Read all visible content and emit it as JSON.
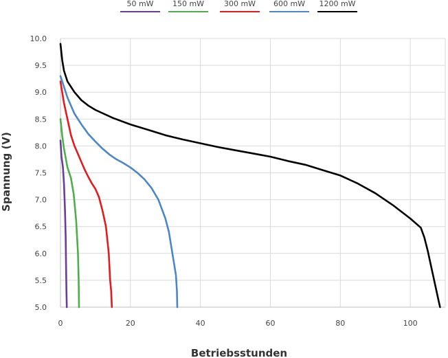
{
  "chart_data": {
    "type": "line",
    "xlabel": "Betriebsstunden",
    "ylabel": "Spannung (V)",
    "xlim": [
      0,
      110
    ],
    "ylim": [
      5.0,
      10.0
    ],
    "x_ticks": [
      "0",
      "20",
      "40",
      "60",
      "80",
      "100"
    ],
    "y_ticks": [
      "5.0",
      "5.5",
      "6.0",
      "6.5",
      "7.0",
      "7.5",
      "8.0",
      "8.5",
      "9.0",
      "9.5",
      "10.0"
    ],
    "grid": true,
    "legend_position": "top",
    "series": [
      {
        "name": "50 mW",
        "color": "#6a3d9a",
        "points": [
          [
            0,
            8.1
          ],
          [
            0.3,
            7.8
          ],
          [
            0.7,
            7.6
          ],
          [
            1.0,
            7.3
          ],
          [
            1.3,
            6.8
          ],
          [
            1.5,
            6.3
          ],
          [
            1.6,
            5.8
          ],
          [
            1.7,
            5.3
          ],
          [
            1.8,
            5.0
          ]
        ]
      },
      {
        "name": "150 mW",
        "color": "#4daf4a",
        "points": [
          [
            0,
            8.5
          ],
          [
            0.5,
            8.2
          ],
          [
            1.0,
            7.95
          ],
          [
            2.0,
            7.6
          ],
          [
            3.0,
            7.4
          ],
          [
            3.8,
            7.1
          ],
          [
            4.5,
            6.6
          ],
          [
            5.0,
            6.0
          ],
          [
            5.2,
            5.5
          ],
          [
            5.3,
            5.0
          ]
        ]
      },
      {
        "name": "300 mW",
        "color": "#e41a1c",
        "points": [
          [
            0,
            9.2
          ],
          [
            1,
            8.8
          ],
          [
            2,
            8.5
          ],
          [
            3,
            8.2
          ],
          [
            4,
            8.0
          ],
          [
            5,
            7.85
          ],
          [
            6,
            7.7
          ],
          [
            7,
            7.55
          ],
          [
            8,
            7.42
          ],
          [
            9,
            7.3
          ],
          [
            10,
            7.2
          ],
          [
            11,
            7.05
          ],
          [
            12,
            6.8
          ],
          [
            13,
            6.5
          ],
          [
            13.8,
            6.0
          ],
          [
            14.2,
            5.5
          ],
          [
            14.5,
            5.3
          ],
          [
            14.7,
            5.0
          ]
        ]
      },
      {
        "name": "600 mW",
        "color": "#4a86c8",
        "points": [
          [
            0,
            9.3
          ],
          [
            2,
            8.9
          ],
          [
            4,
            8.6
          ],
          [
            6,
            8.4
          ],
          [
            8,
            8.22
          ],
          [
            10,
            8.08
          ],
          [
            12,
            7.95
          ],
          [
            14,
            7.84
          ],
          [
            16,
            7.75
          ],
          [
            18,
            7.68
          ],
          [
            20,
            7.6
          ],
          [
            22,
            7.5
          ],
          [
            24,
            7.38
          ],
          [
            26,
            7.22
          ],
          [
            28,
            7.0
          ],
          [
            30,
            6.65
          ],
          [
            31,
            6.4
          ],
          [
            32,
            6.0
          ],
          [
            33,
            5.6
          ],
          [
            33.3,
            5.3
          ],
          [
            33.4,
            5.0
          ]
        ]
      },
      {
        "name": "1200 mW",
        "color": "#000000",
        "points": [
          [
            0,
            9.9
          ],
          [
            0.5,
            9.6
          ],
          [
            1,
            9.4
          ],
          [
            2,
            9.2
          ],
          [
            4,
            9.0
          ],
          [
            6,
            8.85
          ],
          [
            8,
            8.75
          ],
          [
            10,
            8.67
          ],
          [
            15,
            8.52
          ],
          [
            20,
            8.4
          ],
          [
            25,
            8.3
          ],
          [
            30,
            8.2
          ],
          [
            35,
            8.12
          ],
          [
            40,
            8.05
          ],
          [
            45,
            7.98
          ],
          [
            50,
            7.92
          ],
          [
            55,
            7.86
          ],
          [
            60,
            7.8
          ],
          [
            65,
            7.72
          ],
          [
            70,
            7.65
          ],
          [
            75,
            7.55
          ],
          [
            80,
            7.45
          ],
          [
            85,
            7.3
          ],
          [
            90,
            7.12
          ],
          [
            95,
            6.9
          ],
          [
            100,
            6.65
          ],
          [
            103,
            6.48
          ],
          [
            104,
            6.3
          ],
          [
            105,
            6.05
          ],
          [
            106,
            5.75
          ],
          [
            107,
            5.45
          ],
          [
            108,
            5.15
          ],
          [
            108.5,
            5.0
          ]
        ]
      }
    ]
  }
}
